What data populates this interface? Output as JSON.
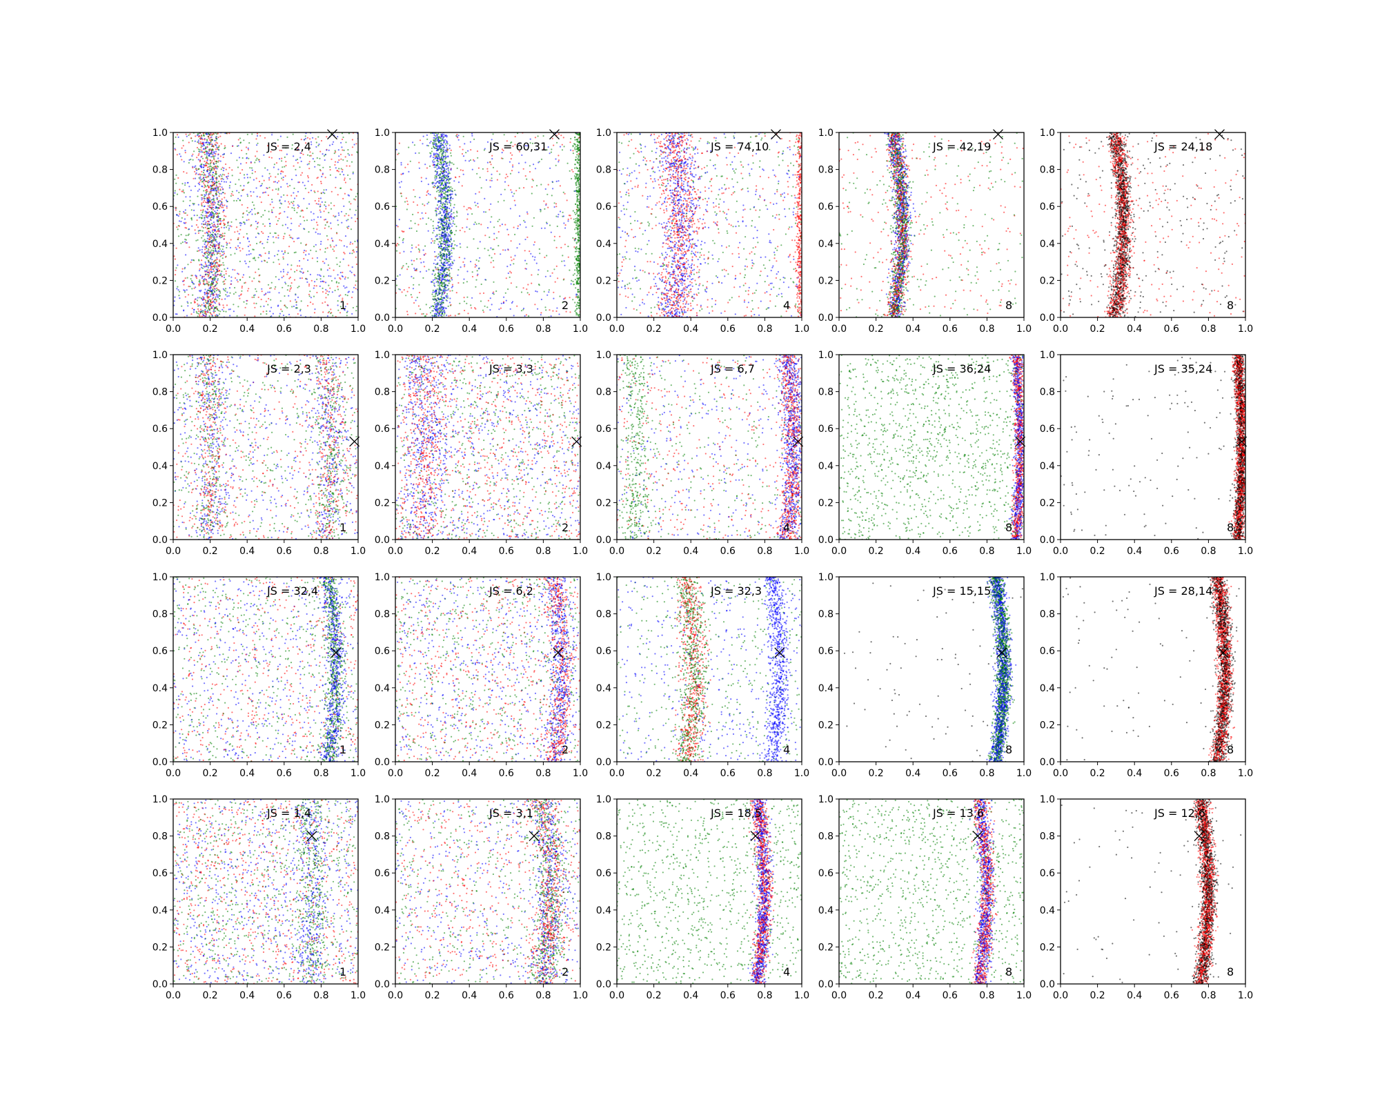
{
  "chart_data": {
    "type": "scatter",
    "layout": {
      "rows": 4,
      "cols": 5
    },
    "xlim": [
      0.0,
      1.0
    ],
    "ylim": [
      0.0,
      1.0
    ],
    "xticks": [
      "0.0",
      "0.2",
      "0.4",
      "0.6",
      "0.8",
      "1.0"
    ],
    "yticks": [
      "0.0",
      "0.2",
      "0.4",
      "0.6",
      "0.8",
      "1.0"
    ],
    "grid": false,
    "colors": {
      "red": "#ff0000",
      "green": "#008000",
      "blue": "#0000ff",
      "black": "#000000"
    },
    "marker": "x",
    "panels": [
      {
        "js": "JS = 2,4",
        "k": "1",
        "marker": [
          0.86,
          0.99
        ],
        "palette": [
          "green",
          "red",
          "blue"
        ],
        "bands": [
          {
            "x": 0.2,
            "amp": 0.03,
            "width": 0.035,
            "colors": [
              "green",
              "red",
              "blue"
            ],
            "weight": 0.45
          }
        ],
        "bg": 0.55
      },
      {
        "js": "JS = 60,31",
        "k": "2",
        "marker": [
          0.86,
          0.99
        ],
        "palette": [
          "blue",
          "green",
          "red"
        ],
        "bands": [
          {
            "x": 0.25,
            "amp": 0.04,
            "width": 0.025,
            "colors": [
              "green",
              "blue"
            ],
            "weight": 0.5
          },
          {
            "x": 0.99,
            "amp": 0.0,
            "width": 0.01,
            "colors": [
              "green"
            ],
            "weight": 0.2
          }
        ],
        "bg": 0.3
      },
      {
        "js": "JS = 74,10",
        "k": "4",
        "marker": [
          0.86,
          0.99
        ],
        "palette": [
          "blue",
          "red",
          "green"
        ],
        "bands": [
          {
            "x": 0.33,
            "amp": 0.04,
            "width": 0.05,
            "colors": [
              "red",
              "blue"
            ],
            "weight": 0.5
          },
          {
            "x": 0.99,
            "amp": 0.0,
            "width": 0.01,
            "colors": [
              "red"
            ],
            "weight": 0.15
          }
        ],
        "bg": 0.35
      },
      {
        "js": "JS = 42,19",
        "k": "8",
        "marker": [
          0.86,
          0.99
        ],
        "palette": [
          "green",
          "red"
        ],
        "bands": [
          {
            "x": 0.32,
            "amp": 0.045,
            "width": 0.022,
            "colors": [
              "red",
              "blue",
              "green"
            ],
            "weight": 0.85
          }
        ],
        "bg": 0.15
      },
      {
        "js": "JS = 24,18",
        "k": "8",
        "marker": [
          0.86,
          0.99
        ],
        "palette": [
          "red",
          "black"
        ],
        "bands": [
          {
            "x": 0.32,
            "amp": 0.045,
            "width": 0.022,
            "colors": [
              "red",
              "black"
            ],
            "weight": 0.85
          }
        ],
        "bg": 0.15
      },
      {
        "js": "JS = 2,3",
        "k": "1",
        "marker": [
          0.98,
          0.53
        ],
        "palette": [
          "red",
          "blue",
          "green"
        ],
        "bands": [
          {
            "x": 0.2,
            "amp": 0.02,
            "width": 0.04,
            "colors": [
              "green",
              "blue",
              "red"
            ],
            "weight": 0.25
          },
          {
            "x": 0.84,
            "amp": 0.03,
            "width": 0.04,
            "colors": [
              "green",
              "blue",
              "red"
            ],
            "weight": 0.25
          }
        ],
        "bg": 0.5
      },
      {
        "js": "JS = 3,3",
        "k": "2",
        "marker": [
          0.98,
          0.53
        ],
        "palette": [
          "red",
          "blue",
          "green"
        ],
        "bands": [
          {
            "x": 0.16,
            "amp": 0.03,
            "width": 0.06,
            "colors": [
              "red",
              "blue"
            ],
            "weight": 0.3
          }
        ],
        "bg": 0.7
      },
      {
        "js": "JS = 6,7",
        "k": "4",
        "marker": [
          0.98,
          0.53
        ],
        "palette": [
          "blue",
          "green",
          "red"
        ],
        "bands": [
          {
            "x": 0.94,
            "amp": 0.03,
            "width": 0.03,
            "colors": [
              "red",
              "blue"
            ],
            "weight": 0.5
          },
          {
            "x": 0.1,
            "amp": 0.02,
            "width": 0.04,
            "colors": [
              "green"
            ],
            "weight": 0.15
          }
        ],
        "bg": 0.35
      },
      {
        "js": "JS = 36,24",
        "k": "8",
        "marker": [
          0.98,
          0.53
        ],
        "palette": [
          "green"
        ],
        "bands": [
          {
            "x": 0.97,
            "amp": 0.02,
            "width": 0.015,
            "colors": [
              "red",
              "blue"
            ],
            "weight": 0.55
          }
        ],
        "bg": 0.45
      },
      {
        "js": "JS = 35,24",
        "k": "8",
        "marker": [
          0.98,
          0.53
        ],
        "palette": [
          "black"
        ],
        "bands": [
          {
            "x": 0.97,
            "amp": 0.02,
            "width": 0.015,
            "colors": [
              "red",
              "black"
            ],
            "weight": 0.95
          }
        ],
        "bg": 0.05
      },
      {
        "js": "JS = 32,4",
        "k": "1",
        "marker": [
          0.88,
          0.59
        ],
        "palette": [
          "blue",
          "red",
          "green"
        ],
        "bands": [
          {
            "x": 0.86,
            "amp": 0.04,
            "width": 0.025,
            "colors": [
              "green",
              "blue"
            ],
            "weight": 0.45
          }
        ],
        "bg": 0.55
      },
      {
        "js": "JS = 6,2",
        "k": "2",
        "marker": [
          0.88,
          0.59
        ],
        "palette": [
          "green",
          "red",
          "blue"
        ],
        "bands": [
          {
            "x": 0.88,
            "amp": 0.04,
            "width": 0.03,
            "colors": [
              "red",
              "blue"
            ],
            "weight": 0.35
          }
        ],
        "bg": 0.65
      },
      {
        "js": "JS = 32,3",
        "k": "4",
        "marker": [
          0.88,
          0.59
        ],
        "palette": [
          "blue",
          "green"
        ],
        "bands": [
          {
            "x": 0.4,
            "amp": 0.04,
            "width": 0.035,
            "colors": [
              "red",
              "green"
            ],
            "weight": 0.45
          },
          {
            "x": 0.86,
            "amp": 0.04,
            "width": 0.025,
            "colors": [
              "blue"
            ],
            "weight": 0.3
          }
        ],
        "bg": 0.25
      },
      {
        "js": "JS = 15,15",
        "k": "8",
        "marker": [
          0.88,
          0.59
        ],
        "palette": [
          "black"
        ],
        "bands": [
          {
            "x": 0.87,
            "amp": 0.04,
            "width": 0.02,
            "colors": [
              "green",
              "blue"
            ],
            "weight": 0.97
          }
        ],
        "bg": 0.03
      },
      {
        "js": "JS = 28,14",
        "k": "8",
        "marker": [
          0.88,
          0.59
        ],
        "palette": [
          "black"
        ],
        "bands": [
          {
            "x": 0.87,
            "amp": 0.04,
            "width": 0.02,
            "colors": [
              "red",
              "black"
            ],
            "weight": 0.97
          }
        ],
        "bg": 0.03
      },
      {
        "js": "JS = 1,4",
        "k": "1",
        "marker": [
          0.75,
          0.8
        ],
        "palette": [
          "red",
          "blue",
          "green"
        ],
        "bands": [
          {
            "x": 0.74,
            "amp": 0.03,
            "width": 0.04,
            "colors": [
              "green",
              "blue"
            ],
            "weight": 0.25
          }
        ],
        "bg": 0.75
      },
      {
        "js": "JS = 3,1",
        "k": "2",
        "marker": [
          0.75,
          0.8
        ],
        "palette": [
          "red",
          "green",
          "blue"
        ],
        "bands": [
          {
            "x": 0.82,
            "amp": 0.05,
            "width": 0.04,
            "colors": [
              "green",
              "blue",
              "red"
            ],
            "weight": 0.5
          }
        ],
        "bg": 0.5
      },
      {
        "js": "JS = 18,5",
        "k": "4",
        "marker": [
          0.75,
          0.8
        ],
        "palette": [
          "green"
        ],
        "bands": [
          {
            "x": 0.78,
            "amp": 0.04,
            "width": 0.02,
            "colors": [
              "red",
              "blue"
            ],
            "weight": 0.65
          }
        ],
        "bg": 0.35
      },
      {
        "js": "JS = 13,6",
        "k": "8",
        "marker": [
          0.75,
          0.8
        ],
        "palette": [
          "green"
        ],
        "bands": [
          {
            "x": 0.78,
            "amp": 0.04,
            "width": 0.02,
            "colors": [
              "red",
              "blue"
            ],
            "weight": 0.6
          }
        ],
        "bg": 0.4
      },
      {
        "js": "JS = 12,6",
        "k": "8",
        "marker": [
          0.75,
          0.8
        ],
        "palette": [
          "black"
        ],
        "bands": [
          {
            "x": 0.78,
            "amp": 0.04,
            "width": 0.02,
            "colors": [
              "red",
              "black"
            ],
            "weight": 0.97
          }
        ],
        "bg": 0.03
      }
    ]
  }
}
